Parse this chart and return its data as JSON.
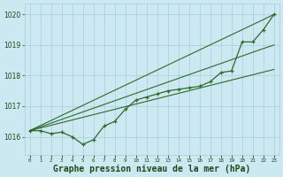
{
  "hours": [
    0,
    1,
    2,
    3,
    4,
    5,
    6,
    7,
    8,
    9,
    10,
    11,
    12,
    13,
    14,
    15,
    16,
    17,
    18,
    19,
    20,
    21,
    22,
    23
  ],
  "y_zigzag": [
    1016.2,
    1016.2,
    1016.1,
    1016.15,
    1016.0,
    1015.75,
    1015.9,
    1016.35,
    1016.5,
    1016.9,
    1017.2,
    1017.3,
    1017.4,
    1017.5,
    1017.55,
    1017.6,
    1017.65,
    1017.8,
    1018.1,
    1018.15,
    1019.1,
    1019.1,
    1019.5,
    1020.0
  ],
  "y_upper_straight": [
    1016.2,
    1016.365,
    1016.53,
    1016.695,
    1016.86,
    1017.025,
    1017.19,
    1017.355,
    1017.52,
    1017.685,
    1017.85,
    1018.015,
    1018.18,
    1018.345,
    1018.51,
    1018.675,
    1018.84,
    1019.005,
    1019.17,
    1019.335,
    1019.5,
    1019.665,
    1019.83,
    1020.0
  ],
  "y_lower_straight": [
    1016.2,
    1016.287,
    1016.374,
    1016.461,
    1016.548,
    1016.635,
    1016.722,
    1016.809,
    1016.896,
    1016.983,
    1017.07,
    1017.157,
    1017.244,
    1017.331,
    1017.418,
    1017.505,
    1017.592,
    1017.679,
    1017.766,
    1017.853,
    1017.94,
    1018.027,
    1018.114,
    1018.2
  ],
  "y_mid_straight": [
    1016.2,
    1016.322,
    1016.444,
    1016.566,
    1016.688,
    1016.81,
    1016.932,
    1017.054,
    1017.176,
    1017.298,
    1017.42,
    1017.542,
    1017.664,
    1017.786,
    1017.908,
    1018.03,
    1018.152,
    1018.274,
    1018.396,
    1018.518,
    1018.64,
    1018.762,
    1018.884,
    1019.0
  ],
  "ylim": [
    1015.4,
    1020.35
  ],
  "yticks": [
    1016,
    1017,
    1018,
    1019,
    1020
  ],
  "xtick_labels": [
    "0",
    "1",
    "2",
    "3",
    "4",
    "5",
    "6",
    "7",
    "8",
    "9",
    "10",
    "11",
    "12",
    "13",
    "14",
    "15",
    "16",
    "17",
    "18",
    "19",
    "20",
    "21",
    "22",
    "23"
  ],
  "bg_color": "#cce8f0",
  "line_color": "#2d6a2d",
  "grid_color": "#aaccd8",
  "text_color": "#1a4a1a",
  "xlabel": "Graphe pression niveau de la mer (hPa)"
}
